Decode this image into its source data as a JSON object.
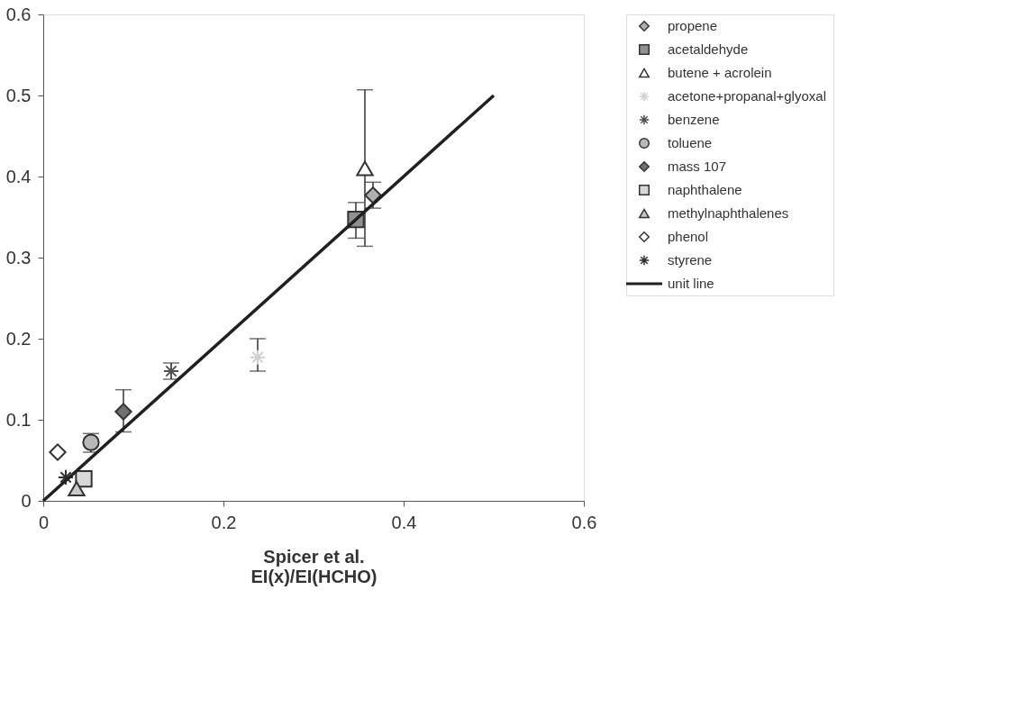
{
  "chart_data": {
    "type": "scatter",
    "xlabel": "Spicer et al.\nEI(x)/EI(HCHO)",
    "xlim": [
      0,
      0.6
    ],
    "xticks": [
      0,
      0.2,
      0.4,
      0.6
    ],
    "ylim": [
      0,
      0.6
    ],
    "yticks": [
      0,
      0.1,
      0.2,
      0.3,
      0.4,
      0.5,
      0.6
    ],
    "grid": false,
    "legend": "right",
    "series": [
      {
        "name": "propene",
        "marker": "diamond",
        "color": "#b0b0b0",
        "x": [
          0.366
        ],
        "values": [
          0.377
        ],
        "errors": [
          [
            0.361,
            0.393
          ]
        ]
      },
      {
        "name": "acetaldehyde",
        "marker": "square",
        "color": "#909090",
        "x": [
          0.347
        ],
        "values": [
          0.347
        ],
        "errors": [
          [
            0.324,
            0.368
          ]
        ]
      },
      {
        "name": "butene + acrolein",
        "marker": "triangle",
        "color": "#ffffff",
        "x": [
          0.357
        ],
        "values": [
          0.41
        ],
        "errors": [
          [
            0.314,
            0.507
          ]
        ]
      },
      {
        "name": "acetone+propanal+glyoxal",
        "marker": "cross",
        "color": "#d0d0d0",
        "x": [
          0.238
        ],
        "values": [
          0.177
        ],
        "errors": [
          [
            0.16,
            0.2
          ]
        ]
      },
      {
        "name": "benzene",
        "marker": "cross",
        "color": "#505050",
        "x": [
          0.142
        ],
        "values": [
          0.16
        ],
        "errors": [
          [
            0.15,
            0.17
          ]
        ]
      },
      {
        "name": "toluene",
        "marker": "circle",
        "color": "#b8b8b8",
        "x": [
          0.053
        ],
        "values": [
          0.072
        ],
        "errors": [
          [
            0.06,
            0.083
          ]
        ]
      },
      {
        "name": "mass 107",
        "marker": "diamond",
        "color": "#707070",
        "x": [
          0.089
        ],
        "values": [
          0.11
        ],
        "errors": [
          [
            0.085,
            0.137
          ]
        ]
      },
      {
        "name": "naphthalene",
        "marker": "square",
        "color": "#d8d8d8",
        "x": [
          0.045
        ],
        "values": [
          0.027
        ]
      },
      {
        "name": "methylnaphthalenes",
        "marker": "triangle",
        "color": "#c8c8c8",
        "x": [
          0.037
        ],
        "values": [
          0.015
        ]
      },
      {
        "name": "phenol",
        "marker": "diamond",
        "color": "#ffffff",
        "x": [
          0.016
        ],
        "values": [
          0.06
        ]
      },
      {
        "name": "styrene",
        "marker": "cross",
        "color": "#303030",
        "x": [
          0.025
        ],
        "values": [
          0.029
        ]
      },
      {
        "name": "unit line",
        "type": "line",
        "color": "#202020",
        "x": [
          0,
          0.5
        ],
        "values": [
          0,
          0.5
        ]
      }
    ]
  }
}
